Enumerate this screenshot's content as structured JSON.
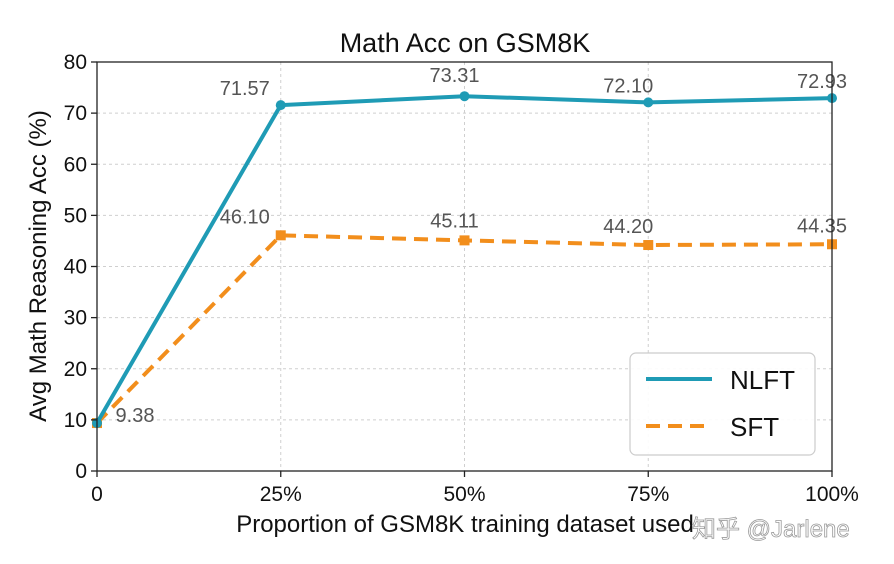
{
  "chart_data": {
    "type": "line",
    "title": "Math Acc on GSM8K",
    "xlabel": "Proportion of GSM8K training dataset used",
    "ylabel": "Avg Math Reasoning Acc (%)",
    "x": [
      0,
      25,
      50,
      75,
      100
    ],
    "x_tick_labels": [
      "0",
      "25%",
      "50%",
      "75%",
      "100%"
    ],
    "xlim": [
      0,
      100
    ],
    "ylim": [
      0,
      80
    ],
    "y_ticks": [
      0,
      10,
      20,
      30,
      40,
      50,
      60,
      70,
      80
    ],
    "grid": true,
    "legend_position": "bottom-right",
    "series": [
      {
        "name": "NLFT",
        "values": [
          9.38,
          71.57,
          73.31,
          72.1,
          72.93
        ],
        "data_labels": [
          "",
          "71.57",
          "73.31",
          "72.10",
          "72.93"
        ],
        "color": "#1f9bb5",
        "line_style": "solid",
        "marker": "circle"
      },
      {
        "name": "SFT",
        "values": [
          9.38,
          46.1,
          45.11,
          44.2,
          44.35
        ],
        "data_labels": [
          "9.38",
          "46.10",
          "45.11",
          "44.20",
          "44.35"
        ],
        "color": "#f28e1c",
        "line_style": "dashed",
        "marker": "square"
      }
    ]
  },
  "watermark": "知乎 @Jarlene"
}
